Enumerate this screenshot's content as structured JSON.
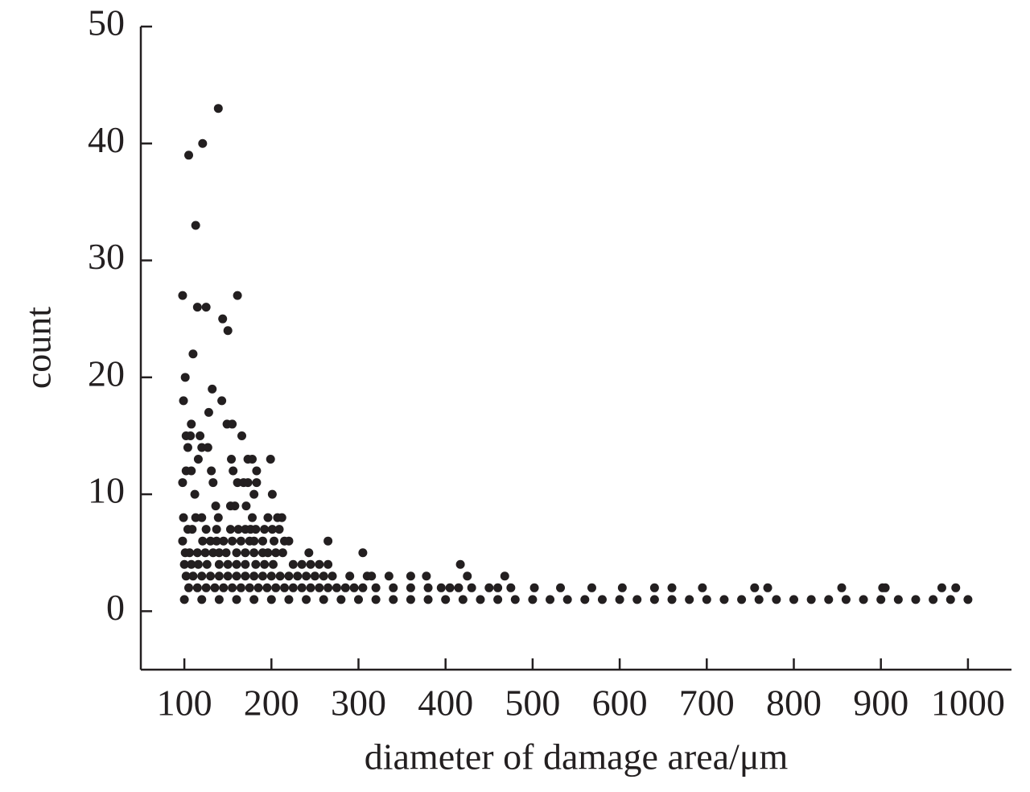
{
  "chart_data": {
    "type": "scatter",
    "x_label": "diameter of damage area/μm",
    "y_label": "count",
    "color": "#231f20",
    "xlim": [
      50,
      1050
    ],
    "ylim": [
      -5,
      50
    ],
    "xticks": [
      100,
      200,
      300,
      400,
      500,
      600,
      700,
      800,
      900,
      1000
    ],
    "yticks": [
      0,
      10,
      20,
      30,
      40,
      50
    ],
    "x": [
      139,
      121,
      105,
      113,
      98,
      161,
      115,
      125,
      144,
      150,
      110,
      101,
      132,
      99,
      143,
      128,
      108,
      149,
      155,
      102,
      107,
      118,
      166,
      104,
      120,
      127,
      116,
      154,
      173,
      178,
      199,
      102,
      108,
      131,
      156,
      183,
      98,
      133,
      161,
      168,
      173,
      183,
      112,
      180,
      201,
      136,
      153,
      158,
      171,
      99,
      113,
      120,
      139,
      178,
      196,
      207,
      212,
      104,
      109,
      125,
      137,
      153,
      162,
      170,
      176,
      182,
      192,
      201,
      209,
      98,
      121,
      130,
      137,
      145,
      155,
      165,
      175,
      180,
      190,
      203,
      215,
      220,
      265,
      101,
      106,
      115,
      124,
      133,
      140,
      148,
      160,
      170,
      180,
      190,
      196,
      205,
      213,
      243,
      305,
      100,
      108,
      116,
      126,
      140,
      150,
      160,
      170,
      182,
      192,
      202,
      225,
      235,
      245,
      255,
      265,
      417,
      102,
      110,
      120,
      130,
      140,
      150,
      160,
      170,
      180,
      190,
      200,
      210,
      220,
      230,
      240,
      250,
      260,
      270,
      290,
      310,
      315,
      335,
      360,
      378,
      425,
      468,
      105,
      115,
      125,
      135,
      145,
      155,
      165,
      175,
      185,
      195,
      205,
      215,
      225,
      235,
      245,
      255,
      265,
      275,
      285,
      295,
      305,
      320,
      340,
      360,
      380,
      395,
      405,
      415,
      430,
      450,
      460,
      475,
      502,
      532,
      568,
      603,
      640,
      660,
      695,
      755,
      770,
      855,
      902,
      905,
      970,
      986,
      100,
      120,
      140,
      160,
      180,
      200,
      220,
      240,
      260,
      280,
      300,
      320,
      340,
      360,
      380,
      400,
      420,
      440,
      460,
      480,
      500,
      520,
      540,
      560,
      580,
      600,
      620,
      640,
      660,
      680,
      700,
      720,
      740,
      760,
      780,
      800,
      820,
      840,
      860,
      880,
      900,
      920,
      940,
      960,
      980,
      1000
    ],
    "values": [
      43,
      40,
      39,
      33,
      27,
      27,
      26,
      26,
      25,
      24,
      22,
      20,
      19,
      18,
      18,
      17,
      16,
      16,
      16,
      15,
      15,
      15,
      15,
      14,
      14,
      14,
      13,
      13,
      13,
      13,
      13,
      12,
      12,
      12,
      12,
      12,
      11,
      11,
      11,
      11,
      11,
      11,
      10,
      10,
      10,
      9,
      9,
      9,
      9,
      8,
      8,
      8,
      8,
      8,
      8,
      8,
      8,
      7,
      7,
      7,
      7,
      7,
      7,
      7,
      7,
      7,
      7,
      7,
      7,
      6,
      6,
      6,
      6,
      6,
      6,
      6,
      6,
      6,
      6,
      6,
      6,
      6,
      6,
      5,
      5,
      5,
      5,
      5,
      5,
      5,
      5,
      5,
      5,
      5,
      5,
      5,
      5,
      5,
      5,
      4,
      4,
      4,
      4,
      4,
      4,
      4,
      4,
      4,
      4,
      4,
      4,
      4,
      4,
      4,
      4,
      4,
      3,
      3,
      3,
      3,
      3,
      3,
      3,
      3,
      3,
      3,
      3,
      3,
      3,
      3,
      3,
      3,
      3,
      3,
      3,
      3,
      3,
      3,
      3,
      3,
      3,
      3,
      2,
      2,
      2,
      2,
      2,
      2,
      2,
      2,
      2,
      2,
      2,
      2,
      2,
      2,
      2,
      2,
      2,
      2,
      2,
      2,
      2,
      2,
      2,
      2,
      2,
      2,
      2,
      2,
      2,
      2,
      2,
      2,
      2,
      2,
      2,
      2,
      2,
      2,
      2,
      2,
      2,
      2,
      2,
      2,
      2,
      2,
      1,
      1,
      1,
      1,
      1,
      1,
      1,
      1,
      1,
      1,
      1,
      1,
      1,
      1,
      1,
      1,
      1,
      1,
      1,
      1,
      1,
      1,
      1,
      1,
      1,
      1,
      1,
      1,
      1,
      1,
      1,
      1,
      1,
      1,
      1,
      1,
      1,
      1,
      1,
      1,
      1,
      1,
      1,
      1,
      1,
      1
    ]
  }
}
